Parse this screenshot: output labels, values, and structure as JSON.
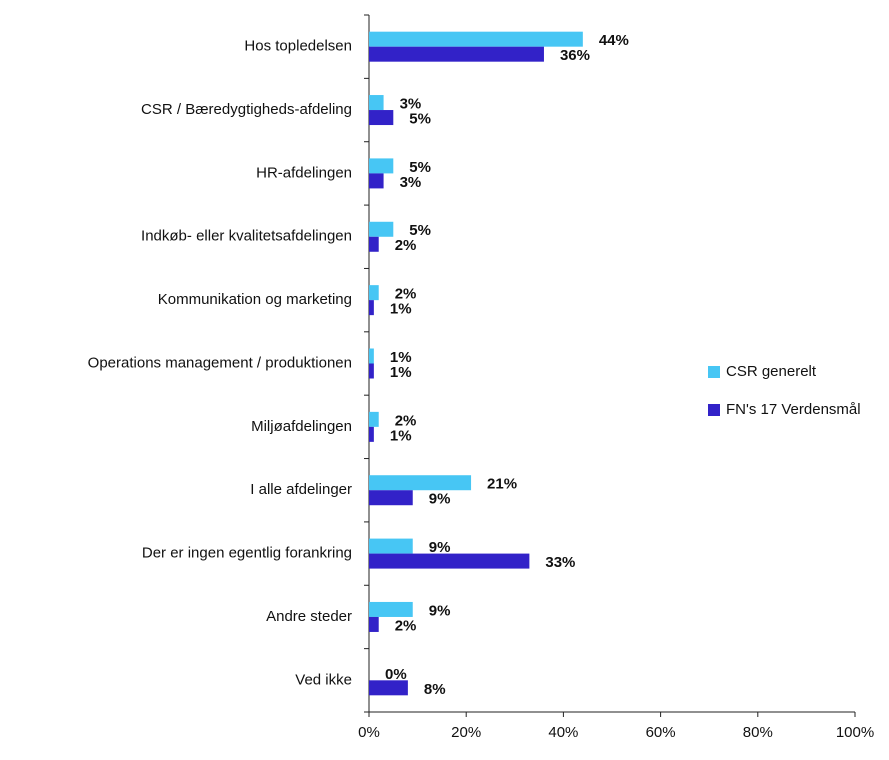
{
  "chart_data": {
    "type": "hbar",
    "categories": [
      "Hos topledelsen",
      "CSR / Bæredygtigheds-afdeling",
      "HR-afdelingen",
      "Indkøb- eller kvalitetsafdelingen",
      "Kommunikation og marketing",
      "Operations management / produktionen",
      "Miljøafdelingen",
      "I alle afdelinger",
      "Der er ingen egentlig forankring",
      "Andre steder",
      "Ved ikke"
    ],
    "series": [
      {
        "name": "CSR generelt",
        "color": "#47c6f4",
        "values": [
          44,
          3,
          5,
          5,
          2,
          1,
          2,
          21,
          9,
          9,
          0
        ],
        "value_labels": [
          "44%",
          "3%",
          "5%",
          "5%",
          "2%",
          "1%",
          "2%",
          "21%",
          "9%",
          "9%",
          "0%"
        ]
      },
      {
        "name": "FN's 17 Verdensmål",
        "color": "#3222c8",
        "values": [
          36,
          5,
          3,
          2,
          1,
          1,
          1,
          9,
          33,
          2,
          8
        ],
        "value_labels": [
          "36%",
          "5%",
          "3%",
          "2%",
          "1%",
          "1%",
          "1%",
          "9%",
          "33%",
          "2%",
          "8%"
        ]
      }
    ],
    "xlim": [
      0,
      100
    ],
    "xticks": [
      {
        "value": 0,
        "label": "0%"
      },
      {
        "value": 20,
        "label": "20%"
      },
      {
        "value": 40,
        "label": "40%"
      },
      {
        "value": 60,
        "label": "60%"
      },
      {
        "value": 80,
        "label": "80%"
      },
      {
        "value": 100,
        "label": "100%"
      }
    ],
    "legend": "right"
  }
}
